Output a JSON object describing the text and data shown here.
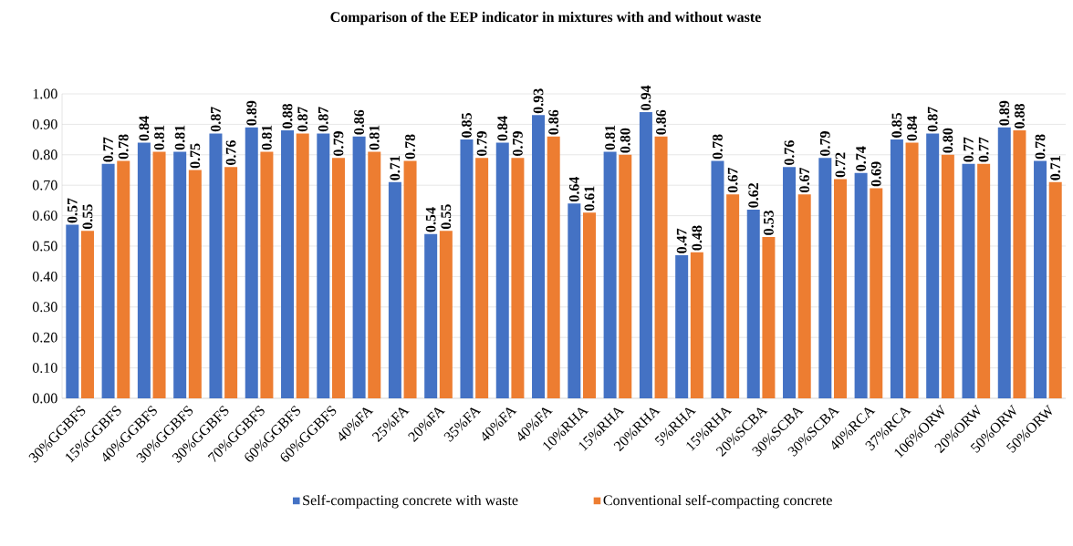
{
  "chart_data": {
    "type": "bar",
    "title": "Comparison of the EEP  indicator in mixtures with and without waste",
    "categories": [
      "30%GGBFS",
      "15%GGBFS",
      "40%GGBFS",
      "30%GGBFS",
      "30%GGBFS",
      "70%GGBFS",
      "60%GGBFS",
      "60%GGBFS",
      "40%FA",
      "25%FA",
      "20%FA",
      "35%FA",
      "40%FA",
      "40%FA",
      "10%RHA",
      "15%RHA",
      "20%RHA",
      "5%RHA",
      "15%RHA",
      "20%SCBA",
      "30%SCBA",
      "30%SCBA",
      "40%RCA",
      "37%RCA",
      "106%ORW",
      "20%ORW",
      "50%ORW",
      "50%ORW"
    ],
    "series": [
      {
        "name": "Self-compacting concrete with waste",
        "color": "#4472c4",
        "values": [
          0.57,
          0.77,
          0.84,
          0.81,
          0.87,
          0.89,
          0.88,
          0.87,
          0.86,
          0.71,
          0.54,
          0.85,
          0.84,
          0.93,
          0.64,
          0.81,
          0.94,
          0.47,
          0.78,
          0.62,
          0.76,
          0.79,
          0.74,
          0.85,
          0.87,
          0.77,
          0.89,
          0.78
        ],
        "value_labels": [
          "0.57",
          "0.77",
          "0.84",
          "0.81",
          "0.87",
          "0.89",
          "0.88",
          "0.87",
          "0.86",
          "0.71",
          "0.54",
          "0.85",
          "0.84",
          "0.93",
          "0.64",
          "0.81",
          "0.94",
          "0.47",
          "0.78",
          "0.62",
          "0.76",
          "0.79",
          "0.74",
          "0.85",
          "0.87",
          "0.77",
          "0.89",
          "0.78"
        ]
      },
      {
        "name": "Conventional self-compacting concrete",
        "color": "#ed7d31",
        "values": [
          0.55,
          0.78,
          0.81,
          0.75,
          0.76,
          0.81,
          0.87,
          0.79,
          0.81,
          0.78,
          0.55,
          0.79,
          0.79,
          0.86,
          0.61,
          0.8,
          0.86,
          0.48,
          0.67,
          0.53,
          0.67,
          0.72,
          0.69,
          0.84,
          0.8,
          0.77,
          0.88,
          0.71
        ],
        "value_labels": [
          "0.55",
          "0.78",
          "0.81",
          "0.75",
          "0.76",
          "0.81",
          "0.87",
          "0.79",
          "0.81",
          "0.78",
          "0.55",
          "0.79",
          "0.79",
          "0.86",
          "0.61",
          "0.80",
          "0.86",
          "0.48",
          "0.67",
          "0.53",
          "0.67",
          "0.72",
          "0.69",
          "0.84",
          "0.80",
          "0.77",
          "0.88",
          "0.71"
        ]
      }
    ],
    "ylim": [
      0,
      1
    ],
    "yticks": [
      {
        "value": 0,
        "label": "0.00"
      },
      {
        "value": 0.1,
        "label": "0.10"
      },
      {
        "value": 0.2,
        "label": "0.20"
      },
      {
        "value": 0.3,
        "label": "0.30"
      },
      {
        "value": 0.4,
        "label": "0.40"
      },
      {
        "value": 0.5,
        "label": "0.50"
      },
      {
        "value": 0.6,
        "label": "0.60"
      },
      {
        "value": 0.7,
        "label": "0.70"
      },
      {
        "value": 0.8,
        "label": "0.80"
      },
      {
        "value": 0.9,
        "label": "0.90"
      },
      {
        "value": 1,
        "label": "1.00"
      }
    ],
    "grid": "y",
    "legend": "bottom"
  }
}
